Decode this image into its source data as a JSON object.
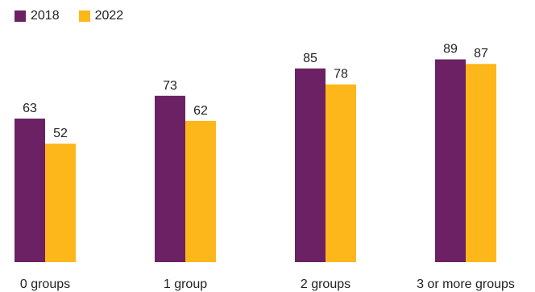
{
  "chart_data": {
    "type": "bar",
    "title": "",
    "xlabel": "",
    "ylabel": "",
    "ylim": [
      0,
      100
    ],
    "grid": false,
    "legend_position": "top-left",
    "categories": [
      "0 groups",
      "1 group",
      "2 groups",
      "3 or more groups"
    ],
    "series": [
      {
        "name": "2018",
        "color": "#6b2163",
        "values": [
          63,
          73,
          85,
          89
        ]
      },
      {
        "name": "2022",
        "color": "#fdb71a",
        "values": [
          52,
          62,
          78,
          87
        ]
      }
    ]
  }
}
